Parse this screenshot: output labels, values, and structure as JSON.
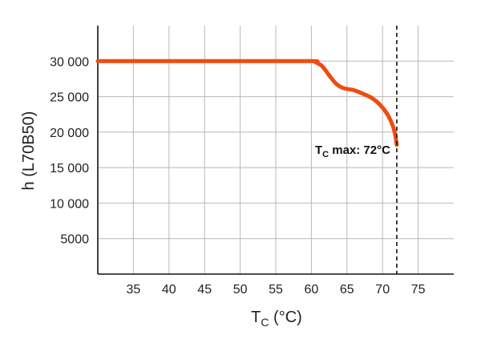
{
  "chart_data": {
    "type": "line",
    "xlabel": "T",
    "xlabel_sub": "C",
    "xlabel_unit": " (°C)",
    "ylabel": "h (L70B50)",
    "xlim": [
      30,
      80
    ],
    "ylim": [
      0,
      35000
    ],
    "x_ticks": [
      35,
      40,
      45,
      50,
      55,
      60,
      65,
      70,
      75
    ],
    "y_ticks": [
      5000,
      10000,
      15000,
      20000,
      25000,
      30000
    ],
    "y_tick_labels": [
      "5000",
      "10 000",
      "15 000",
      "20 000",
      "25 000",
      "30 000"
    ],
    "grid": true,
    "series": [
      {
        "color": "#ef4b12",
        "x": [
          30,
          40,
          50,
          60,
          60.5,
          61.5,
          62.5,
          63.5,
          64.5,
          66,
          67.5,
          68.5,
          69.5,
          70.5,
          71.2,
          71.7,
          72
        ],
        "y": [
          30000,
          30000,
          30000,
          30000,
          29900,
          29300,
          28000,
          26800,
          26200,
          25900,
          25300,
          24800,
          24000,
          22800,
          21500,
          20000,
          18200
        ]
      }
    ],
    "annotations": [
      {
        "x": 72,
        "line_style": "dashed",
        "text_main": "T",
        "text_sub": "C",
        "text_rest": " max: 72°C"
      }
    ]
  }
}
